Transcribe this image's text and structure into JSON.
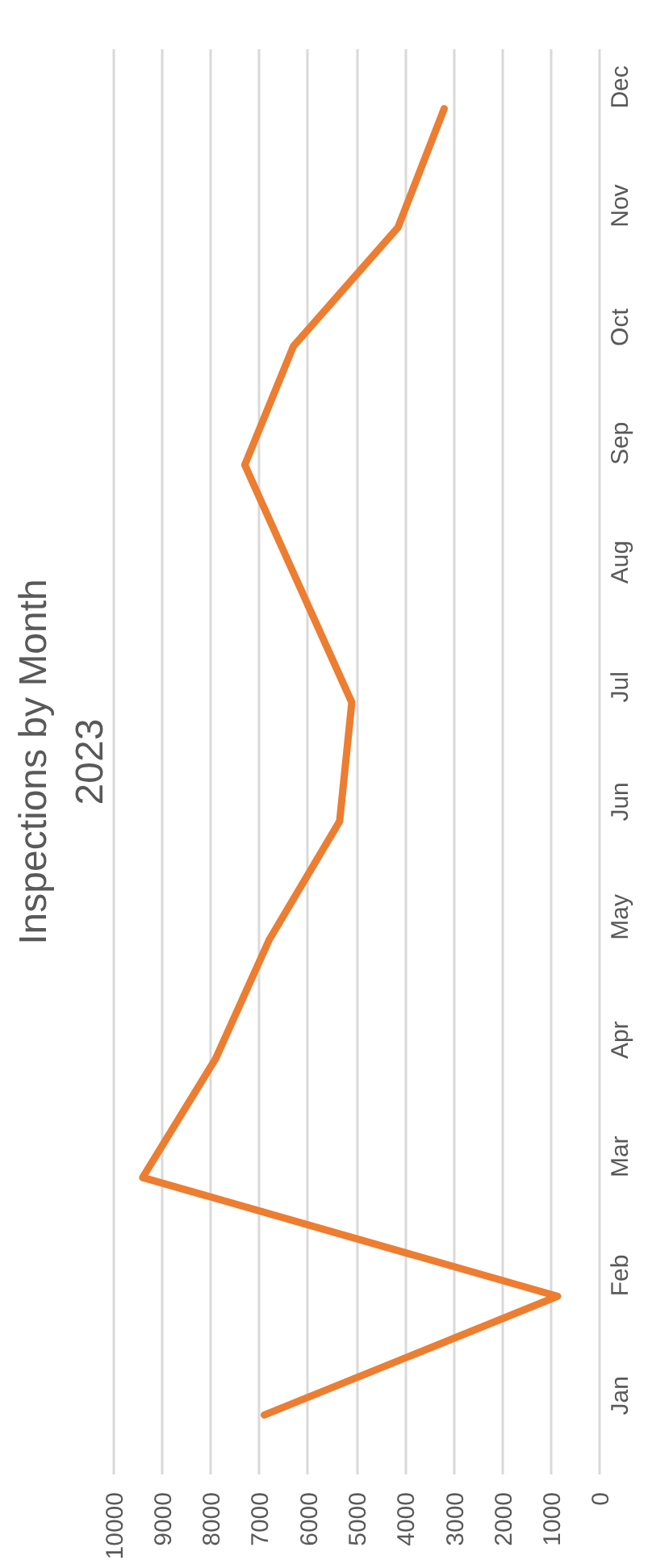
{
  "chart_data": {
    "type": "line",
    "orientation": "horizontal",
    "title": "Inspections by Month",
    "subtitle": "2023",
    "categories": [
      "Dec",
      "Nov",
      "Oct",
      "Sep",
      "Aug",
      "Jul",
      "Jun",
      "May",
      "Apr",
      "Mar",
      "Feb",
      "Jan"
    ],
    "values": [
      3200,
      4150,
      6300,
      7300,
      6200,
      5100,
      5350,
      6800,
      7900,
      9400,
      870,
      6900
    ],
    "color": "#ed7d31",
    "xlim": [
      10000,
      0
    ],
    "xticks": [
      0,
      1000,
      2000,
      3000,
      4000,
      5000,
      6000,
      7000,
      8000,
      9000,
      10000
    ],
    "grid": "x",
    "line_style": "solid"
  }
}
